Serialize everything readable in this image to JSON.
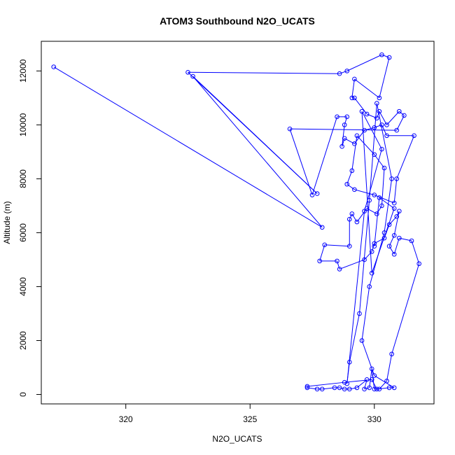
{
  "chart_data": {
    "type": "line",
    "title": "ATOM3 Southbound N2O_UCATS",
    "xlabel": "N2O_UCATS",
    "ylabel": "Altitude (m)",
    "xlim": [
      316.6,
      332.4
    ],
    "ylim": [
      -350,
      13100
    ],
    "xticks": [
      320,
      325,
      330
    ],
    "yticks": [
      0,
      2000,
      4000,
      6000,
      8000,
      10000,
      12000
    ],
    "grid": false,
    "legend": "none",
    "series": [
      {
        "color": "#0000ff",
        "marker": "open-circle",
        "points": [
          [
            317.1,
            12150
          ],
          [
            327.9,
            6200
          ],
          [
            322.7,
            11800
          ],
          [
            327.7,
            7450
          ],
          [
            322.5,
            11950
          ],
          [
            328.6,
            11900
          ],
          [
            328.9,
            12000
          ],
          [
            330.3,
            12600
          ],
          [
            330.6,
            12500
          ],
          [
            330.2,
            11000
          ],
          [
            329.2,
            11700
          ],
          [
            329.1,
            11000
          ],
          [
            329.2,
            11000
          ],
          [
            329.7,
            10400
          ],
          [
            330.1,
            10250
          ],
          [
            330.2,
            10500
          ],
          [
            330.5,
            10000
          ],
          [
            331.0,
            10500
          ],
          [
            331.2,
            10350
          ],
          [
            330.9,
            9800
          ],
          [
            326.6,
            9850
          ],
          [
            327.5,
            7400
          ],
          [
            328.5,
            10300
          ],
          [
            328.9,
            10300
          ],
          [
            328.8,
            10000
          ],
          [
            328.7,
            9200
          ],
          [
            328.8,
            9500
          ],
          [
            329.2,
            9300
          ],
          [
            329.6,
            9800
          ],
          [
            330.0,
            9900
          ],
          [
            330.3,
            10000
          ],
          [
            330.5,
            9600
          ],
          [
            331.6,
            9600
          ],
          [
            330.9,
            8000
          ],
          [
            330.8,
            7100
          ],
          [
            330.0,
            7400
          ],
          [
            329.2,
            7600
          ],
          [
            328.9,
            7800
          ],
          [
            329.1,
            8300
          ],
          [
            329.3,
            9600
          ],
          [
            330.0,
            8900
          ],
          [
            330.4,
            8400
          ],
          [
            330.3,
            7000
          ],
          [
            330.1,
            6700
          ],
          [
            329.7,
            6900
          ],
          [
            329.3,
            6400
          ],
          [
            329.1,
            6700
          ],
          [
            329.0,
            6500
          ],
          [
            329.0,
            5500
          ],
          [
            328.0,
            5550
          ],
          [
            327.8,
            4950
          ],
          [
            328.5,
            4950
          ],
          [
            328.6,
            4650
          ],
          [
            329.6,
            5000
          ],
          [
            329.9,
            5300
          ],
          [
            330.0,
            5600
          ],
          [
            330.4,
            5800
          ],
          [
            330.6,
            6300
          ],
          [
            330.9,
            6600
          ],
          [
            331.0,
            6800
          ],
          [
            330.8,
            5900
          ],
          [
            330.6,
            5500
          ],
          [
            330.8,
            5200
          ],
          [
            331.0,
            5800
          ],
          [
            331.5,
            5700
          ],
          [
            331.8,
            4850
          ],
          [
            330.7,
            1500
          ],
          [
            330.5,
            500
          ],
          [
            330.2,
            200
          ],
          [
            330.0,
            200
          ],
          [
            329.9,
            950
          ],
          [
            329.8,
            250
          ],
          [
            329.6,
            200
          ],
          [
            329.7,
            550
          ],
          [
            329.3,
            250
          ],
          [
            329.0,
            200
          ],
          [
            328.8,
            200
          ],
          [
            328.6,
            250
          ],
          [
            328.4,
            250
          ],
          [
            327.9,
            200
          ],
          [
            327.7,
            200
          ],
          [
            327.3,
            250
          ],
          [
            327.3,
            300
          ],
          [
            328.8,
            450
          ],
          [
            329.9,
            550
          ],
          [
            330.1,
            200
          ],
          [
            330.6,
            250
          ],
          [
            330.8,
            250
          ],
          [
            330.0,
            700
          ],
          [
            329.5,
            2000
          ],
          [
            329.8,
            4000
          ],
          [
            330.4,
            6000
          ],
          [
            330.7,
            8000
          ],
          [
            330.1,
            10800
          ],
          [
            329.8,
            7200
          ],
          [
            329.4,
            3000
          ],
          [
            329.0,
            1200
          ],
          [
            328.9,
            400
          ],
          [
            329.6,
            6800
          ],
          [
            330.3,
            9100
          ],
          [
            329.5,
            10500
          ],
          [
            329.9,
            4500
          ],
          [
            330.8,
            6900
          ],
          [
            330.2,
            7300
          ],
          [
            330.0,
            5500
          ]
        ]
      }
    ]
  }
}
